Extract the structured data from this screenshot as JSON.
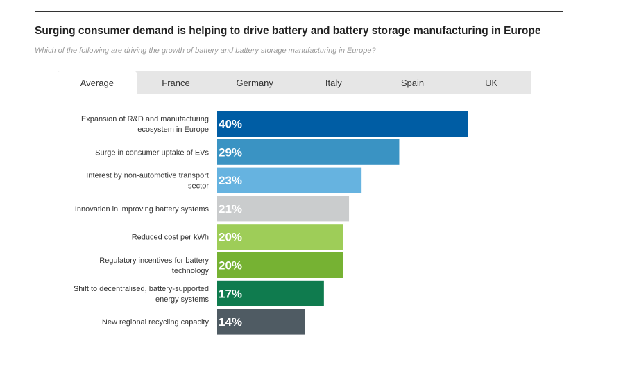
{
  "title": "Surging consumer demand is helping to drive battery and battery storage manufacturing in Europe",
  "subtitle": "Which of the following are driving the growth of battery and battery storage manufacturing in Europe?",
  "tabs": [
    {
      "label": "Average",
      "active": true
    },
    {
      "label": "France"
    },
    {
      "label": "Germany"
    },
    {
      "label": "Italy"
    },
    {
      "label": "Spain"
    },
    {
      "label": "UK"
    }
  ],
  "chart_data": {
    "type": "bar",
    "orientation": "horizontal",
    "unit": "%",
    "xlim": [
      0,
      40
    ],
    "grid": false,
    "categories": [
      [
        "Expansion of R&D and manufacturing",
        "ecosystem in Europe"
      ],
      [
        "Surge in consumer uptake of EVs"
      ],
      [
        "Interest by non-automotive transport",
        "sector"
      ],
      [
        "Innovation in improving battery systems"
      ],
      [
        "Reduced cost per kWh"
      ],
      [
        "Regulatory incentives for battery",
        "technology"
      ],
      [
        "Shift to decentralised, battery-supported",
        "energy systems"
      ],
      [
        "New regional recycling capacity"
      ]
    ],
    "values": [
      40,
      29,
      23,
      21,
      20,
      20,
      17,
      14
    ],
    "data_labels": [
      "40%",
      "29%",
      "23%",
      "21%",
      "20%",
      "20%",
      "17%",
      "14%"
    ],
    "colors": [
      "#005da4",
      "#3a93c3",
      "#66b3e0",
      "#cacccd",
      "#9ecd58",
      "#76b233",
      "#0f7b4e",
      "#4f5b63"
    ]
  }
}
